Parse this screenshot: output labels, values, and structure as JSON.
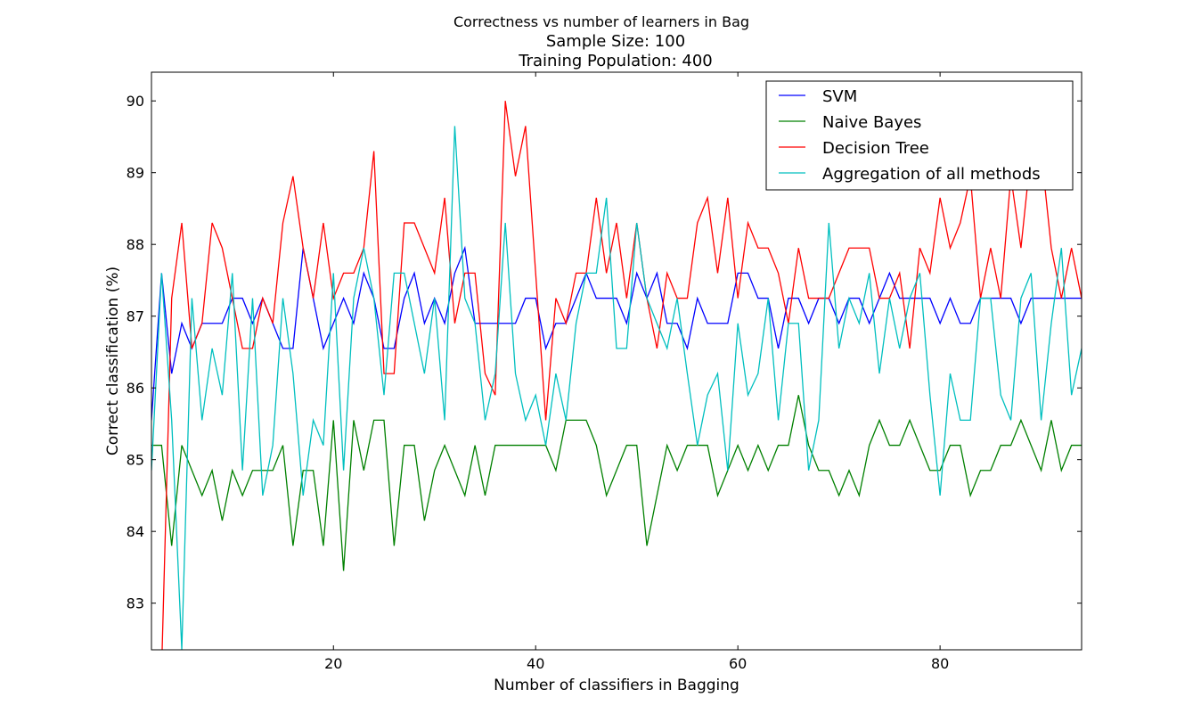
{
  "chart_data": {
    "type": "line",
    "title": "Correctness vs number of learners in Bag",
    "subtitle_lines": [
      "Sample Size: 100",
      "Training Population: 400"
    ],
    "xlabel": "Number of classifiers in Bagging",
    "ylabel": "Correct classification (%)",
    "xlim": [
      2,
      94
    ],
    "ylim": [
      82.35,
      90.4
    ],
    "xticks": [
      20,
      40,
      60,
      80
    ],
    "yticks": [
      83,
      84,
      85,
      86,
      87,
      88,
      89,
      90
    ],
    "grid": false,
    "legend_position": "top-right",
    "x": [
      2,
      3,
      4,
      5,
      6,
      7,
      8,
      9,
      10,
      11,
      12,
      13,
      14,
      15,
      16,
      17,
      18,
      19,
      20,
      21,
      22,
      23,
      24,
      25,
      26,
      27,
      28,
      29,
      30,
      31,
      32,
      33,
      34,
      35,
      36,
      37,
      38,
      39,
      40,
      41,
      42,
      43,
      44,
      45,
      46,
      47,
      48,
      49,
      50,
      51,
      52,
      53,
      54,
      55,
      56,
      57,
      58,
      59,
      60,
      61,
      62,
      63,
      64,
      65,
      66,
      67,
      68,
      69,
      70,
      71,
      72,
      73,
      74,
      75,
      76,
      77,
      78,
      79,
      80,
      81,
      82,
      83,
      84,
      85,
      86,
      87,
      88,
      89,
      90,
      91,
      92,
      93,
      94
    ],
    "series": [
      {
        "name": "SVM",
        "color": "#0000ff",
        "values": [
          85.55,
          87.6,
          86.2,
          86.9,
          86.55,
          86.9,
          86.9,
          86.9,
          87.25,
          87.25,
          86.9,
          87.25,
          86.9,
          86.55,
          86.55,
          87.95,
          87.25,
          86.55,
          86.9,
          87.25,
          86.9,
          87.6,
          87.25,
          86.55,
          86.55,
          87.25,
          87.6,
          86.9,
          87.25,
          86.9,
          87.6,
          87.95,
          86.9,
          86.9,
          86.9,
          86.9,
          86.9,
          87.25,
          87.25,
          86.55,
          86.9,
          86.9,
          87.25,
          87.6,
          87.25,
          87.25,
          87.25,
          86.9,
          87.6,
          87.25,
          87.6,
          86.9,
          86.9,
          86.55,
          87.25,
          86.9,
          86.9,
          86.9,
          87.6,
          87.6,
          87.25,
          87.25,
          86.55,
          87.25,
          87.25,
          86.9,
          87.25,
          87.25,
          86.9,
          87.25,
          87.25,
          86.9,
          87.25,
          87.6,
          87.25,
          87.25,
          87.25,
          87.25,
          86.9,
          87.25,
          86.9,
          86.9,
          87.25,
          87.25,
          87.25,
          87.25,
          86.9,
          87.25,
          87.25,
          87.25,
          87.25,
          87.25,
          87.25
        ]
      },
      {
        "name": "Naive Bayes",
        "color": "#008000",
        "values": [
          85.2,
          85.2,
          83.8,
          85.2,
          84.85,
          84.5,
          84.85,
          84.15,
          84.85,
          84.5,
          84.85,
          84.85,
          84.85,
          85.2,
          83.8,
          84.85,
          84.85,
          83.8,
          85.55,
          83.45,
          85.55,
          84.85,
          85.55,
          85.55,
          83.8,
          85.2,
          85.2,
          84.15,
          84.85,
          85.2,
          84.85,
          84.5,
          85.2,
          84.5,
          85.2,
          85.2,
          85.2,
          85.2,
          85.2,
          85.2,
          84.85,
          85.55,
          85.55,
          85.55,
          85.2,
          84.5,
          84.85,
          85.2,
          85.2,
          83.8,
          84.5,
          85.2,
          84.85,
          85.2,
          85.2,
          85.2,
          84.5,
          84.85,
          85.2,
          84.85,
          85.2,
          84.85,
          85.2,
          85.2,
          85.9,
          85.2,
          84.85,
          84.85,
          84.5,
          84.85,
          84.5,
          85.2,
          85.55,
          85.2,
          85.2,
          85.55,
          85.2,
          84.85,
          84.85,
          85.2,
          85.2,
          84.5,
          84.85,
          84.85,
          85.2,
          85.2,
          85.55,
          85.2,
          84.85,
          85.55,
          84.85,
          85.2,
          85.2
        ]
      },
      {
        "name": "Decision Tree",
        "color": "#ff0000",
        "values": [
          81.9,
          82.05,
          87.25,
          88.3,
          86.55,
          86.9,
          88.3,
          87.95,
          87.25,
          86.55,
          86.55,
          87.25,
          86.9,
          88.3,
          88.95,
          87.95,
          87.25,
          88.3,
          87.25,
          87.6,
          87.6,
          87.95,
          89.3,
          86.2,
          86.2,
          88.3,
          88.3,
          87.95,
          87.6,
          88.65,
          86.9,
          87.6,
          87.6,
          86.2,
          85.9,
          90.0,
          88.95,
          89.65,
          87.6,
          85.55,
          87.25,
          86.9,
          87.6,
          87.6,
          88.65,
          87.6,
          88.3,
          87.25,
          88.3,
          87.25,
          86.55,
          87.6,
          87.25,
          87.25,
          88.3,
          88.65,
          87.6,
          88.65,
          87.25,
          88.3,
          87.95,
          87.95,
          87.6,
          86.9,
          87.95,
          87.25,
          87.25,
          87.25,
          87.6,
          87.95,
          87.95,
          87.95,
          87.25,
          87.25,
          87.6,
          86.55,
          87.95,
          87.6,
          88.65,
          87.95,
          88.3,
          88.95,
          87.25,
          87.95,
          87.25,
          88.95,
          87.95,
          89.3,
          89.3,
          87.95,
          87.25,
          87.95,
          87.25
        ]
      },
      {
        "name": "Aggregation of all methods",
        "color": "#00bfbf",
        "values": [
          84.85,
          87.6,
          85.55,
          82.35,
          87.25,
          85.55,
          86.55,
          85.9,
          87.6,
          84.85,
          87.25,
          84.5,
          85.2,
          87.25,
          86.2,
          84.5,
          85.55,
          85.2,
          87.6,
          84.85,
          87.25,
          87.95,
          87.25,
          85.9,
          87.6,
          87.6,
          86.9,
          86.2,
          87.25,
          85.55,
          89.65,
          87.25,
          86.9,
          85.55,
          86.2,
          88.3,
          86.2,
          85.55,
          85.9,
          85.2,
          86.2,
          85.55,
          86.9,
          87.6,
          87.6,
          88.65,
          86.55,
          86.55,
          88.3,
          87.25,
          86.9,
          86.55,
          87.25,
          86.2,
          85.2,
          85.9,
          86.2,
          84.85,
          86.9,
          85.9,
          86.2,
          87.25,
          85.55,
          86.9,
          86.9,
          84.85,
          85.55,
          88.3,
          86.55,
          87.25,
          86.9,
          87.6,
          86.2,
          87.25,
          86.55,
          87.25,
          87.6,
          85.9,
          84.5,
          86.2,
          85.55,
          85.55,
          87.25,
          87.25,
          85.9,
          85.55,
          87.25,
          87.6,
          85.55,
          86.9,
          87.95,
          85.9,
          86.55
        ]
      }
    ]
  }
}
